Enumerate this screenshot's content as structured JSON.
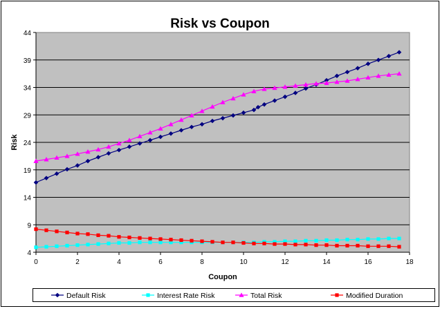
{
  "chart_data": {
    "type": "line",
    "title": "Risk vs Coupon",
    "xlabel": "Coupon",
    "ylabel": "Risk",
    "xlim": [
      0,
      18
    ],
    "ylim": [
      4,
      44
    ],
    "xticks": [
      0,
      2,
      4,
      6,
      8,
      10,
      12,
      14,
      16,
      18
    ],
    "yticks": [
      4,
      9,
      14,
      19,
      24,
      29,
      34,
      39,
      44
    ],
    "grid": "horizontal",
    "legend_position": "bottom",
    "series": [
      {
        "name": "Default Risk",
        "color": "#000080",
        "marker": "diamond",
        "x": [
          0,
          0.5,
          1,
          1.5,
          2,
          2.5,
          3,
          3.5,
          4,
          4.5,
          5,
          5.5,
          6,
          6.5,
          7,
          7.5,
          8,
          8.5,
          9,
          9.5,
          10,
          10.5,
          10.7,
          11,
          11.5,
          12,
          12.5,
          13,
          13.5,
          14,
          14.5,
          15,
          15.5,
          16,
          16.5,
          17,
          17.5
        ],
        "values": [
          16.7,
          17.5,
          18.3,
          19.1,
          19.8,
          20.6,
          21.3,
          22.0,
          22.6,
          23.2,
          23.8,
          24.4,
          25.0,
          25.6,
          26.2,
          26.8,
          27.3,
          27.9,
          28.4,
          28.9,
          29.4,
          29.9,
          30.4,
          30.9,
          31.6,
          32.3,
          33.0,
          33.8,
          34.5,
          35.3,
          36.1,
          36.8,
          37.5,
          38.3,
          39.0,
          39.7,
          40.4
        ]
      },
      {
        "name": "Interest Rate Risk",
        "color": "#00FFFF",
        "marker": "square",
        "x": [
          0,
          0.5,
          1,
          1.5,
          2,
          2.5,
          3,
          3.5,
          4,
          4.5,
          5,
          5.5,
          6,
          6.5,
          7,
          7.5,
          8,
          8.5,
          9,
          9.5,
          10,
          10.5,
          11,
          11.5,
          12,
          12.5,
          13,
          13.5,
          14,
          14.5,
          15,
          15.5,
          16,
          16.5,
          17,
          17.5
        ],
        "values": [
          4.9,
          5.0,
          5.1,
          5.2,
          5.3,
          5.4,
          5.5,
          5.6,
          5.7,
          5.7,
          5.8,
          5.8,
          5.8,
          5.8,
          5.8,
          5.8,
          5.8,
          5.8,
          5.8,
          5.8,
          5.8,
          5.8,
          5.9,
          5.9,
          6.0,
          6.0,
          6.1,
          6.1,
          6.2,
          6.2,
          6.3,
          6.3,
          6.4,
          6.4,
          6.5,
          6.5
        ]
      },
      {
        "name": "Total Risk",
        "color": "#FF00FF",
        "marker": "triangle",
        "x": [
          0,
          0.5,
          1,
          1.5,
          2,
          2.5,
          3,
          3.5,
          4,
          4.5,
          5,
          5.5,
          6,
          6.5,
          7,
          7.5,
          8,
          8.5,
          9,
          9.5,
          10,
          10.5,
          11,
          11.5,
          12,
          12.5,
          13,
          13.5,
          14,
          14.5,
          15,
          15.5,
          16,
          16.5,
          17,
          17.5
        ],
        "values": [
          20.6,
          20.9,
          21.2,
          21.5,
          21.9,
          22.3,
          22.7,
          23.2,
          23.8,
          24.4,
          25.1,
          25.8,
          26.5,
          27.3,
          28.1,
          28.9,
          29.7,
          30.5,
          31.3,
          32.0,
          32.7,
          33.3,
          33.7,
          33.9,
          34.1,
          34.3,
          34.5,
          34.7,
          34.8,
          35.0,
          35.2,
          35.5,
          35.8,
          36.1,
          36.3,
          36.5
        ]
      },
      {
        "name": "Modified Duration",
        "color": "#FF0000",
        "marker": "square",
        "x": [
          0,
          0.5,
          1,
          1.5,
          2,
          2.5,
          3,
          3.5,
          4,
          4.5,
          5,
          5.5,
          6,
          6.5,
          7,
          7.5,
          8,
          8.5,
          9,
          9.5,
          10,
          10.5,
          11,
          11.5,
          12,
          12.5,
          13,
          13.5,
          14,
          14.5,
          15,
          15.5,
          16,
          16.5,
          17,
          17.5
        ],
        "values": [
          8.2,
          8.0,
          7.8,
          7.6,
          7.4,
          7.3,
          7.1,
          7.0,
          6.8,
          6.7,
          6.6,
          6.5,
          6.4,
          6.3,
          6.2,
          6.1,
          6.0,
          5.9,
          5.8,
          5.8,
          5.7,
          5.6,
          5.6,
          5.5,
          5.5,
          5.4,
          5.4,
          5.3,
          5.3,
          5.2,
          5.2,
          5.2,
          5.1,
          5.1,
          5.1,
          5.0
        ]
      }
    ]
  }
}
